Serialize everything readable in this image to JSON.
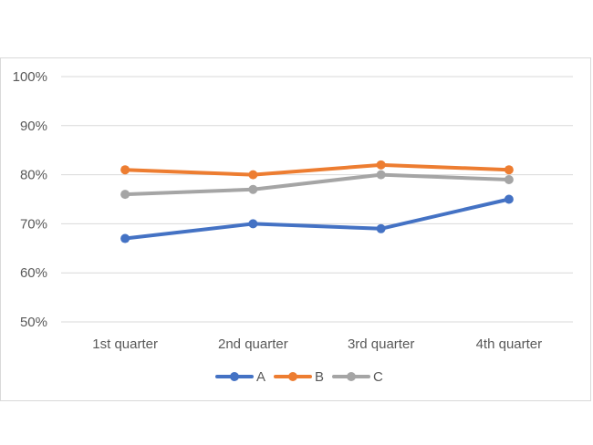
{
  "chart_data": {
    "type": "line",
    "categories": [
      "1st quarter",
      "2nd quarter",
      "3rd quarter",
      "4th quarter"
    ],
    "series": [
      {
        "name": "A",
        "values": [
          67,
          70,
          69,
          75
        ],
        "color": "#4472c4"
      },
      {
        "name": "B",
        "values": [
          81,
          80,
          82,
          81
        ],
        "color": "#ed7d31"
      },
      {
        "name": "C",
        "values": [
          76,
          77,
          80,
          79
        ],
        "color": "#a5a5a5"
      }
    ],
    "ylim": [
      50,
      100
    ],
    "yticks": [
      50,
      60,
      70,
      80,
      90,
      100
    ],
    "ytick_labels": [
      "50%",
      "60%",
      "70%",
      "80%",
      "90%",
      "100%"
    ],
    "grid": true,
    "legend": "bottom",
    "grid_color": "#d9d9d9",
    "tick_color": "#595959"
  }
}
